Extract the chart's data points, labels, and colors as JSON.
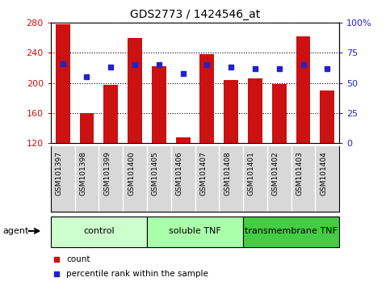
{
  "title": "GDS2773 / 1424546_at",
  "samples": [
    "GSM101397",
    "GSM101398",
    "GSM101399",
    "GSM101400",
    "GSM101405",
    "GSM101406",
    "GSM101407",
    "GSM101408",
    "GSM101401",
    "GSM101402",
    "GSM101403",
    "GSM101404"
  ],
  "counts": [
    278,
    160,
    197,
    260,
    222,
    128,
    238,
    204,
    206,
    199,
    262,
    190
  ],
  "percentiles": [
    66,
    55,
    63,
    65,
    65,
    58,
    65,
    63,
    62,
    62,
    65,
    62
  ],
  "bar_bottom": 120,
  "ylim": [
    120,
    280
  ],
  "yticks": [
    120,
    160,
    200,
    240,
    280
  ],
  "y2lim": [
    0,
    100
  ],
  "y2ticks": [
    0,
    25,
    50,
    75,
    100
  ],
  "bar_color": "#cc1111",
  "dot_color": "#2222cc",
  "groups": [
    {
      "label": "control",
      "start": 0,
      "end": 4,
      "color": "#ccffcc"
    },
    {
      "label": "soluble TNF",
      "start": 4,
      "end": 8,
      "color": "#aaffaa"
    },
    {
      "label": "transmembrane TNF",
      "start": 8,
      "end": 12,
      "color": "#44cc44"
    }
  ],
  "agent_label": "agent",
  "tick_color_left": "#cc1111",
  "tick_color_right": "#2222cc",
  "legend_items": [
    {
      "label": "count",
      "color": "#cc1111"
    },
    {
      "label": "percentile rank within the sample",
      "color": "#2222cc"
    }
  ],
  "figsize": [
    4.83,
    3.54
  ],
  "dpi": 100
}
